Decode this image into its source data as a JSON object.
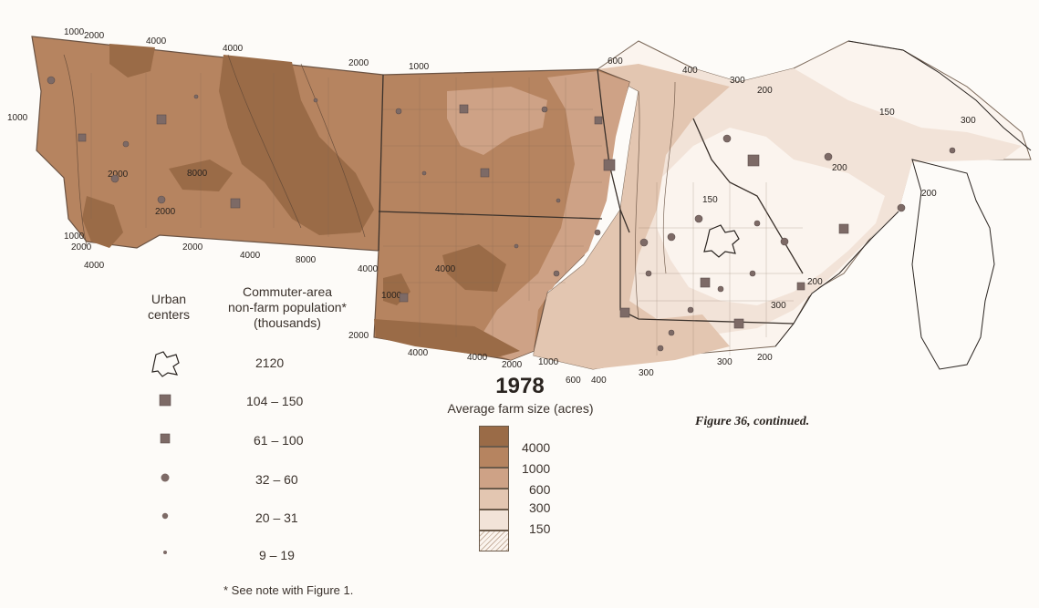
{
  "map": {
    "region": "Northern Great Plains and Upper Midwest",
    "class_colors": {
      "4000": "#9a6b47",
      "1000": "#b68460",
      "600": "#cea286",
      "300": "#e3c6b1",
      "150": "#f2e3d8",
      "below": "#fbf4ee"
    },
    "contour_labels": [
      "1000",
      "2000",
      "4000",
      "4000",
      "2000",
      "1000",
      "600",
      "400",
      "300",
      "200",
      "150",
      "300",
      "1000",
      "2000",
      "8000",
      "2000",
      "1000",
      "2000",
      "4000",
      "2000",
      "4000",
      "8000",
      "4000",
      "4000",
      "1000",
      "2000",
      "4000",
      "4000",
      "2000",
      "1000",
      "600",
      "400",
      "300",
      "300",
      "200",
      "200",
      "300",
      "200",
      "150",
      "200"
    ]
  },
  "legend_urban": {
    "heading_left": "Urban\ncenters",
    "heading_right": "Commuter-area\nnon-farm population*\n(thousands)",
    "items": [
      {
        "symbol": "urban-outline",
        "value": "2120"
      },
      {
        "symbol": "large-square",
        "value": "104 – 150"
      },
      {
        "symbol": "small-square",
        "value": "61 – 100"
      },
      {
        "symbol": "large-dot",
        "value": "32 – 60"
      },
      {
        "symbol": "medium-dot",
        "value": "20 – 31"
      },
      {
        "symbol": "small-dot",
        "value": "9 – 19"
      }
    ]
  },
  "legend_farm": {
    "year": "1978",
    "subtitle": "Average farm size (acres)",
    "classes": [
      {
        "value": "4000",
        "color": "#9a6b47"
      },
      {
        "value": "1000",
        "color": "#b68460"
      },
      {
        "value": "600",
        "color": "#cea286"
      },
      {
        "value": "300",
        "color": "#e3c6b1"
      },
      {
        "value": "150",
        "color": "#f2e3d8"
      },
      {
        "value": "",
        "color": "#fbf4ee"
      }
    ]
  },
  "caption": "Figure 36, continued.",
  "footnote": "* See note with Figure 1."
}
